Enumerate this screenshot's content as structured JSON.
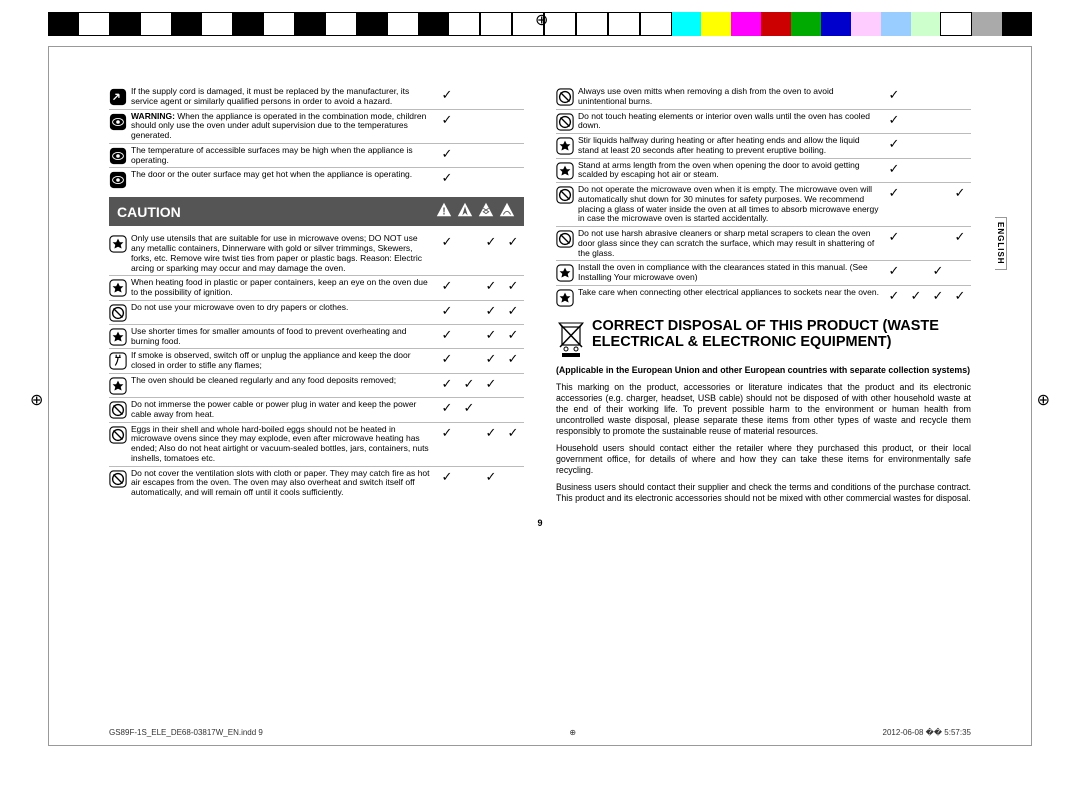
{
  "color_bar": [
    "#000",
    "#fff",
    "#000",
    "#fff",
    "#000",
    "#fff",
    "#000",
    "#fff",
    "#000",
    "#fff",
    "#000",
    "#fff",
    "#000",
    "#fff",
    "#fff",
    "#fff",
    "#fff",
    "#fff",
    "#fff",
    "#fff",
    "#0ff",
    "#ff0",
    "#f0f",
    "#c00",
    "#0a0",
    "#00c",
    "#fcf",
    "#9cf",
    "#cfc",
    "#fff",
    "#aaa",
    "#000"
  ],
  "left_rows_top": [
    {
      "icon": "arrow",
      "text": "If the supply cord is damaged, it must be replaced by the manufacturer, its service agent or similarly qualified persons in order to avoid a hazard.",
      "c": [
        1,
        0,
        0,
        0
      ]
    },
    {
      "icon": "eye",
      "bold": "WARNING: ",
      "text": "When the appliance is operated in the combination mode, children should only use the oven under adult supervision due to the temperatures generated.",
      "c": [
        1,
        0,
        0,
        0
      ]
    },
    {
      "icon": "eye",
      "text": "The temperature of accessible surfaces may be high when the appliance is operating.",
      "c": [
        1,
        0,
        0,
        0
      ]
    },
    {
      "icon": "eye",
      "text": "The door or the outer surface may get hot when the appliance is operating.",
      "c": [
        1,
        0,
        0,
        0
      ]
    }
  ],
  "caution_label": "CAUTION",
  "left_rows_bottom": [
    {
      "icon": "star",
      "text": "Only use utensils that are suitable for use in microwave ovens; DO NOT use any metallic containers, Dinnerware with gold or silver trimmings, Skewers, forks, etc. Remove wire twist ties from paper or plastic bags. Reason: Electric arcing or sparking may occur and may damage the oven.",
      "c": [
        1,
        0,
        1,
        1
      ]
    },
    {
      "icon": "star",
      "text": "When heating food in plastic or paper containers, keep an eye on the oven due to the possibility of ignition.",
      "c": [
        1,
        0,
        1,
        1
      ]
    },
    {
      "icon": "ban",
      "text": "Do not use your microwave oven to dry papers or clothes.",
      "c": [
        1,
        0,
        1,
        1
      ]
    },
    {
      "icon": "star",
      "text": "Use shorter times for smaller amounts of food to prevent overheating and burning food.",
      "c": [
        1,
        0,
        1,
        1
      ]
    },
    {
      "icon": "plug",
      "text": "If smoke is observed, switch off or unplug the appliance and keep the door closed in order to stifle any flames;",
      "c": [
        1,
        0,
        1,
        1
      ]
    },
    {
      "icon": "star",
      "text": "The oven should be cleaned regularly and any food deposits removed;",
      "c": [
        1,
        1,
        1,
        0
      ]
    },
    {
      "icon": "ban",
      "text": "Do not immerse the power cable or power plug in water and keep the power cable away from heat.",
      "c": [
        1,
        1,
        0,
        0
      ]
    },
    {
      "icon": "ban",
      "text": "Eggs in their shell and whole hard-boiled eggs should not be heated in microwave ovens since they may explode, even after microwave heating has ended; Also do not heat airtight or vacuum-sealed bottles, jars, containers, nuts inshells, tomatoes etc.",
      "c": [
        1,
        0,
        1,
        1
      ]
    },
    {
      "icon": "ban",
      "text": "Do not cover the ventilation slots with cloth or paper. They may catch fire as hot air escapes from the oven. The oven may also overheat and switch itself off automatically, and will remain off until it cools sufficiently.",
      "c": [
        1,
        0,
        1,
        0
      ]
    }
  ],
  "right_rows": [
    {
      "icon": "ban",
      "text": "Always use oven mitts when removing a dish from the oven to avoid unintentional burns.",
      "c": [
        1,
        0,
        0,
        0
      ]
    },
    {
      "icon": "ban",
      "text": "Do not touch heating elements or interior oven walls until the oven has cooled down.",
      "c": [
        1,
        0,
        0,
        0
      ]
    },
    {
      "icon": "star",
      "text": "Stir liquids halfway during heating or after heating ends and allow the liquid stand at least 20 seconds after heating to prevent eruptive boiling.",
      "c": [
        1,
        0,
        0,
        0
      ]
    },
    {
      "icon": "star",
      "text": "Stand at arms length from the oven when opening the door to avoid getting scalded by escaping hot air or steam.",
      "c": [
        1,
        0,
        0,
        0
      ]
    },
    {
      "icon": "ban",
      "text": "Do not operate the microwave oven when it is empty. The microwave oven will automatically shut down for 30 minutes for safety purposes. We recommend placing a glass of water inside the oven at all times to absorb microwave energy in case the microwave oven is started accidentally.",
      "c": [
        1,
        0,
        0,
        1
      ]
    },
    {
      "icon": "ban",
      "text": "Do not use harsh abrasive cleaners or sharp metal scrapers to clean the oven door glass since they can scratch the surface, which may result in shattering of the glass.",
      "c": [
        1,
        0,
        0,
        1
      ]
    },
    {
      "icon": "star",
      "text": "Install the oven in compliance with the clearances stated in this manual. (See Installing Your microwave oven)",
      "c": [
        1,
        0,
        1,
        0
      ]
    },
    {
      "icon": "star",
      "text": "Take care when connecting other electrical appliances to sockets near the oven.",
      "c": [
        1,
        1,
        1,
        1
      ]
    }
  ],
  "disposal_title": "CORRECT DISPOSAL OF THIS PRODUCT (WASTE ELECTRICAL & ELECTRONIC EQUIPMENT)",
  "disposal_sub": "(Applicable in the European Union and other European countries with separate collection systems)",
  "disposal_p1": "This marking on the product, accessories or literature indicates that the product and its electronic accessories (e.g. charger, headset, USB cable) should not be disposed of with other household waste at the end of their working life. To prevent possible harm to the environment or human health from uncontrolled waste disposal, please separate these items from other types of waste and recycle them responsibly to promote the sustainable reuse of material resources.",
  "disposal_p2": "Household users should contact either the retailer where they purchased this product, or their local government office, for details of where and how they can take these items for environmentally safe recycling.",
  "disposal_p3": "Business users should contact their supplier and check the terms and conditions of the purchase contract. This product and its electronic accessories should not be mixed with other commercial wastes for disposal.",
  "page_num": "9",
  "lang": "ENGLISH",
  "footer_left": "GS89F-1S_ELE_DE68-03817W_EN.indd   9",
  "footer_right": "2012-06-08   �� 5:57:35"
}
